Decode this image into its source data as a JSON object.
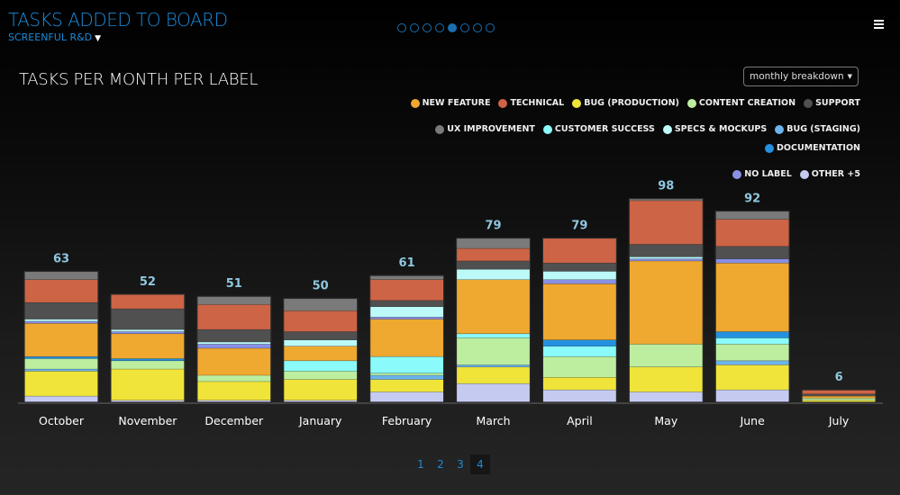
{
  "header": {
    "title": "TASKS ADDED TO BOARD",
    "subtitle": "SCREENFUL R&D",
    "filter_icon": "filter-icon",
    "slide_count": 8,
    "active_slide": 5,
    "menu_icon": "hamburger-icon"
  },
  "dropdown": {
    "label": "monthly breakdown",
    "icon": "caret-down-icon"
  },
  "pagination": {
    "pages": [
      "1",
      "2",
      "3",
      "4"
    ],
    "active": "4"
  },
  "chart_data": {
    "type": "bar",
    "stacked": true,
    "title": "TASKS PER MONTH PER LABEL",
    "legend_position": "top-right",
    "grid": false,
    "categories": [
      "October",
      "November",
      "December",
      "January",
      "February",
      "March",
      "April",
      "May",
      "June",
      "July"
    ],
    "totals": [
      63,
      52,
      51,
      50,
      61,
      79,
      79,
      98,
      92,
      6
    ],
    "series": [
      {
        "name": "NEW FEATURE",
        "color": "#efa830",
        "values": [
          16,
          12,
          13,
          7,
          18,
          26,
          27,
          40,
          33,
          1
        ]
      },
      {
        "name": "TECHNICAL",
        "color": "#cd6446",
        "values": [
          11,
          7,
          12,
          10,
          10,
          6,
          12,
          21,
          13,
          2
        ]
      },
      {
        "name": "BUG (PRODUCTION)",
        "color": "#f0e43a",
        "values": [
          12,
          15,
          9,
          10,
          6,
          8,
          6,
          12,
          12,
          1
        ]
      },
      {
        "name": "CONTENT CREATION",
        "color": "#bdeea0",
        "values": [
          5,
          4,
          3,
          4,
          1,
          13,
          10,
          11,
          8,
          1
        ]
      },
      {
        "name": "SUPPORT",
        "color": "#505050",
        "values": [
          8,
          10,
          6,
          4,
          3,
          4,
          4,
          6,
          6,
          1
        ]
      },
      {
        "name": "UX IMPROVEMENT",
        "color": "#7a7a7a",
        "values": [
          4,
          0,
          4,
          6,
          2,
          5,
          0,
          1,
          4,
          0
        ]
      },
      {
        "name": "CUSTOMER SUCCESS",
        "color": "#8afafa",
        "values": [
          0,
          0,
          0,
          5,
          8,
          2,
          5,
          0,
          3,
          0
        ]
      },
      {
        "name": "SPECS & MOCKUPS",
        "color": "#bcfafa",
        "values": [
          1,
          1,
          1,
          3,
          5,
          5,
          4,
          1,
          0,
          0
        ]
      },
      {
        "name": "BUG (STAGING)",
        "color": "#6cb4ec",
        "values": [
          1,
          0,
          0,
          0,
          2,
          1,
          0,
          0,
          2,
          0
        ]
      },
      {
        "name": "DOCUMENTATION",
        "color": "#2490e0",
        "values": [
          1,
          1,
          0,
          0,
          0,
          0,
          3,
          0,
          3,
          0
        ]
      },
      {
        "name": "NO LABEL",
        "color": "#8890e6",
        "values": [
          1,
          1,
          2,
          0,
          1,
          0,
          2,
          1,
          2,
          0
        ]
      },
      {
        "name": "OTHER +5",
        "color": "#c5cbf0",
        "values": [
          3,
          1,
          1,
          1,
          5,
          9,
          6,
          5,
          6,
          0
        ]
      }
    ]
  }
}
